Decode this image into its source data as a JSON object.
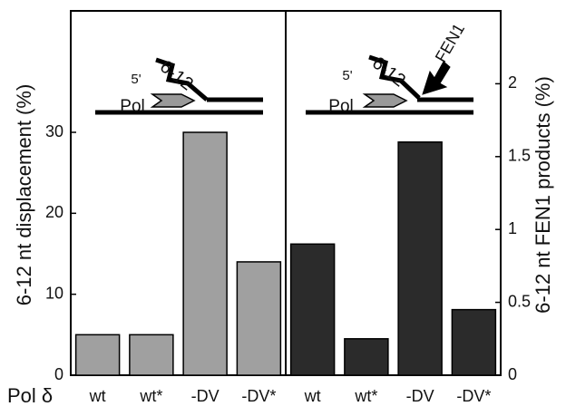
{
  "chart_data": [
    {
      "type": "bar",
      "xlabel": "Pol δ",
      "ylabel": "6-12 nt displacement (%)",
      "categories": [
        "wt",
        "wt*",
        "-DV",
        "-DV*"
      ],
      "values": [
        5,
        5,
        30,
        14
      ],
      "color": "#a0a0a0",
      "ylim": [
        0,
        45
      ],
      "yticks": [
        0,
        10,
        20,
        30
      ],
      "annotations": [
        "5'",
        "6-12",
        "Pol"
      ]
    },
    {
      "type": "bar",
      "ylabel": "6-12 nt FEN1 products (%)",
      "categories": [
        "wt",
        "wt*",
        "-DV",
        "-DV*"
      ],
      "values": [
        0.9,
        0.25,
        1.6,
        0.45
      ],
      "color": "#2b2b2b",
      "ylim": [
        0,
        2.5
      ],
      "yticks": [
        0,
        0.5,
        1,
        1.5,
        2
      ],
      "annotations": [
        "5'",
        "6-12",
        "Pol",
        "FEN1"
      ]
    }
  ]
}
